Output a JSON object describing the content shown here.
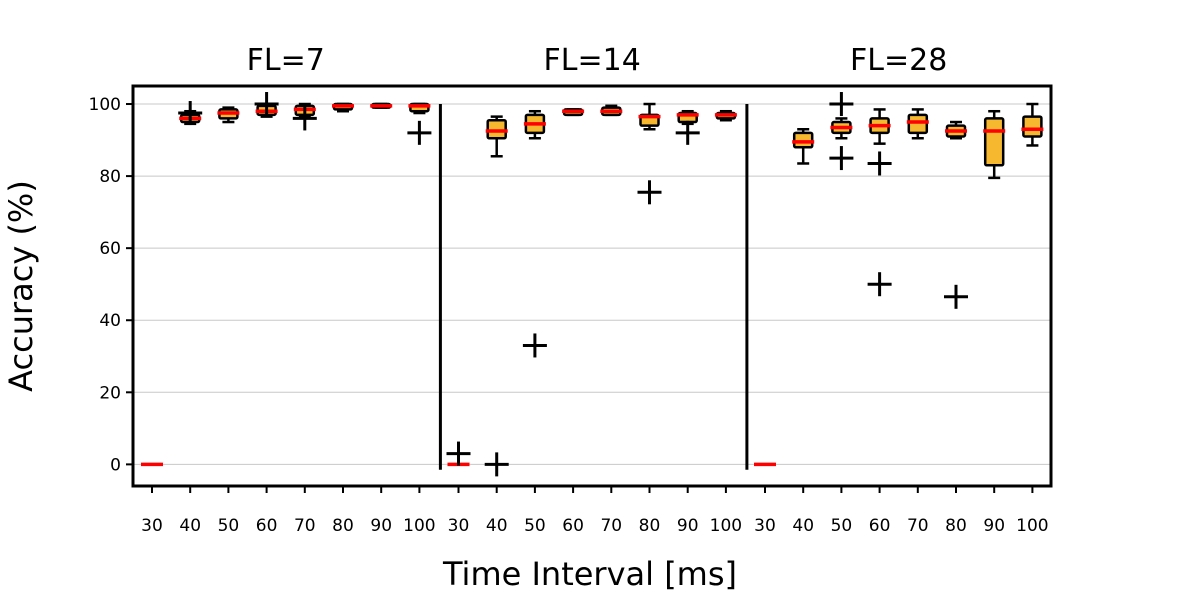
{
  "chart_data": {
    "type": "box",
    "xlabel": "Time Interval [ms]",
    "ylabel": "Accuracy (%)",
    "ylim": [
      -6,
      105
    ],
    "yticks": [
      0,
      20,
      40,
      60,
      80,
      100
    ],
    "grid": "horizontal",
    "categories": [
      "30",
      "40",
      "50",
      "60",
      "70",
      "80",
      "90",
      "100"
    ],
    "box_fill_color": "#f5b82e",
    "median_color": "#ff0000",
    "panels": [
      {
        "title": "FL=7",
        "boxes": [
          {
            "x": "30",
            "whislo": 0,
            "q1": 0,
            "med": 0,
            "q3": 0,
            "whishi": 0,
            "fliers": []
          },
          {
            "x": "40",
            "whislo": 94.5,
            "q1": 95,
            "med": 96,
            "q3": 97,
            "whishi": 98,
            "fliers": [
              97.5
            ]
          },
          {
            "x": "50",
            "whislo": 95,
            "q1": 96,
            "med": 97.5,
            "q3": 98.5,
            "whishi": 99,
            "fliers": []
          },
          {
            "x": "60",
            "whislo": 96.5,
            "q1": 97,
            "med": 98,
            "q3": 99.5,
            "whishi": 100,
            "fliers": [
              100
            ]
          },
          {
            "x": "70",
            "whislo": 96.5,
            "q1": 97,
            "med": 98.5,
            "q3": 99.5,
            "whishi": 100,
            "fliers": [
              96
            ]
          },
          {
            "x": "80",
            "whislo": 98,
            "q1": 98.5,
            "med": 99.5,
            "q3": 100,
            "whishi": 100,
            "fliers": []
          },
          {
            "x": "90",
            "whislo": 99,
            "q1": 99,
            "med": 99.5,
            "q3": 100,
            "whishi": 100,
            "fliers": []
          },
          {
            "x": "100",
            "whislo": 97.5,
            "q1": 98,
            "med": 99.5,
            "q3": 100,
            "whishi": 100,
            "fliers": [
              92
            ]
          }
        ]
      },
      {
        "title": "FL=14",
        "boxes": [
          {
            "x": "30",
            "whislo": 0,
            "q1": 0,
            "med": 0,
            "q3": 0,
            "whishi": 0,
            "fliers": [
              3
            ]
          },
          {
            "x": "40",
            "whislo": 85.5,
            "q1": 90.5,
            "med": 92.5,
            "q3": 95.5,
            "whishi": 96.5,
            "fliers": [
              0
            ]
          },
          {
            "x": "50",
            "whislo": 90.5,
            "q1": 92,
            "med": 94.5,
            "q3": 97,
            "whishi": 98,
            "fliers": [
              33
            ]
          },
          {
            "x": "60",
            "whislo": 97,
            "q1": 97,
            "med": 98,
            "q3": 98.5,
            "whishi": 98.5,
            "fliers": []
          },
          {
            "x": "70",
            "whislo": 97,
            "q1": 97,
            "med": 98,
            "q3": 99,
            "whishi": 99.5,
            "fliers": []
          },
          {
            "x": "80",
            "whislo": 93,
            "q1": 94,
            "med": 96.5,
            "q3": 97,
            "whishi": 100,
            "fliers": [
              75.5
            ]
          },
          {
            "x": "90",
            "whislo": 94.5,
            "q1": 95,
            "med": 97,
            "q3": 97.5,
            "whishi": 98,
            "fliers": [
              92
            ]
          },
          {
            "x": "100",
            "whislo": 95.5,
            "q1": 96,
            "med": 97,
            "q3": 97.5,
            "whishi": 98,
            "fliers": []
          }
        ]
      },
      {
        "title": "FL=28",
        "boxes": [
          {
            "x": "30",
            "whislo": 0,
            "q1": 0,
            "med": 0,
            "q3": 0,
            "whishi": 0,
            "fliers": []
          },
          {
            "x": "40",
            "whislo": 83.5,
            "q1": 88,
            "med": 89.5,
            "q3": 92,
            "whishi": 93,
            "fliers": []
          },
          {
            "x": "50",
            "whislo": 90.5,
            "q1": 92,
            "med": 93.5,
            "q3": 95,
            "whishi": 96,
            "fliers": [
              100,
              85
            ]
          },
          {
            "x": "60",
            "whislo": 89,
            "q1": 92,
            "med": 94,
            "q3": 96,
            "whishi": 98.5,
            "fliers": [
              83.5,
              50
            ]
          },
          {
            "x": "70",
            "whislo": 90.5,
            "q1": 92,
            "med": 95,
            "q3": 97,
            "whishi": 98.5,
            "fliers": []
          },
          {
            "x": "80",
            "whislo": 90.5,
            "q1": 91,
            "med": 92.5,
            "q3": 94,
            "whishi": 95,
            "fliers": [
              46.5
            ]
          },
          {
            "x": "90",
            "whislo": 79.5,
            "q1": 83,
            "med": 92.5,
            "q3": 96,
            "whishi": 98,
            "fliers": []
          },
          {
            "x": "100",
            "whislo": 88.5,
            "q1": 91,
            "med": 93,
            "q3": 96.5,
            "whishi": 100,
            "fliers": []
          }
        ]
      }
    ]
  }
}
